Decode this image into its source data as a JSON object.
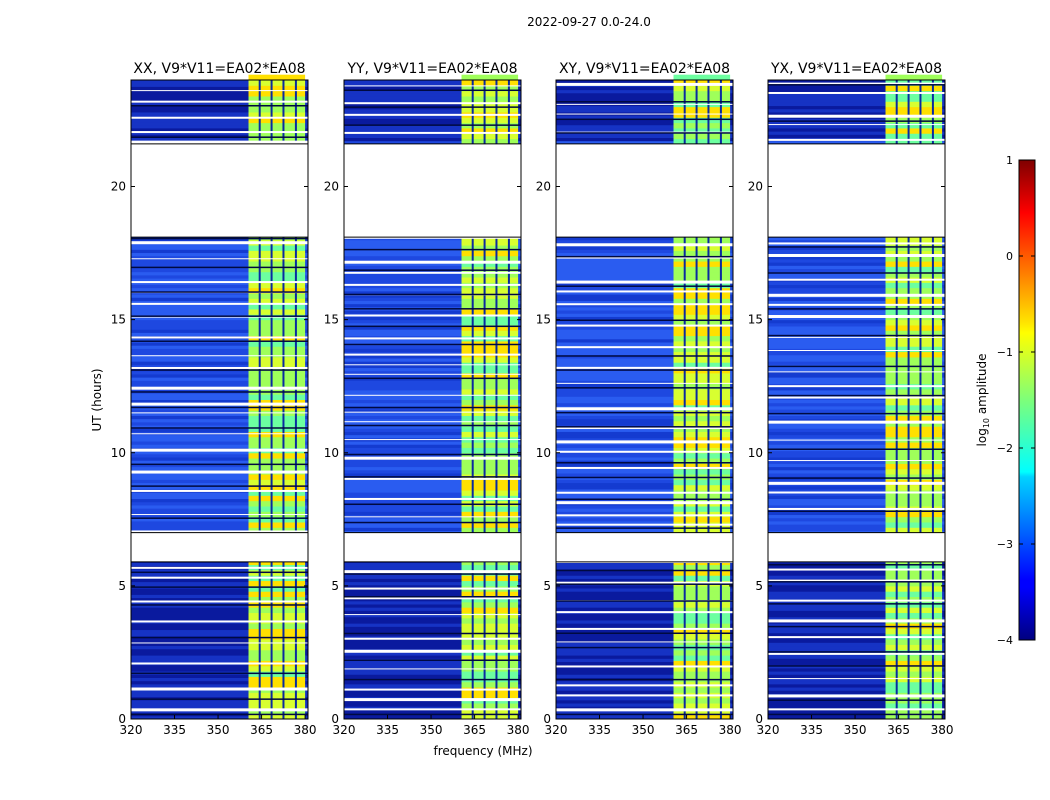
{
  "chart_data": {
    "type": "heatmap",
    "suptitle": "2022-09-27 0.0-24.0",
    "xlabel": "frequency (MHz)",
    "ylabel": "UT (hours)",
    "xlim": [
      320,
      381
    ],
    "ylim": [
      0,
      24
    ],
    "xticks": [
      320,
      335,
      350,
      365,
      380
    ],
    "yticks": [
      0,
      5,
      10,
      15,
      20
    ],
    "panels": [
      {
        "title": "XX, V9*V11=EA02*EA08",
        "polarization": "XX"
      },
      {
        "title": "YY, V9*V11=EA02*EA08",
        "polarization": "YY"
      },
      {
        "title": "XY, V9*V11=EA02*EA08",
        "polarization": "XY"
      },
      {
        "title": "YX, V9*V11=EA02*EA08",
        "polarization": "YX"
      }
    ],
    "colorbar": {
      "label_base": "log",
      "label_sub": "10",
      "label_rest": " amplitude",
      "range": [
        -4,
        1
      ],
      "ticks": [
        1,
        0,
        -1,
        -2,
        -3,
        -4
      ],
      "tick_labels": [
        "1",
        "0",
        "−1",
        "−2",
        "−3",
        "−4"
      ],
      "colormap": "jet"
    },
    "flagged_time_ranges_hours": [
      [
        5.9,
        7.0
      ],
      [
        18.1,
        21.6
      ]
    ],
    "bright_band_mhz": [
      360.5,
      380
    ]
  }
}
